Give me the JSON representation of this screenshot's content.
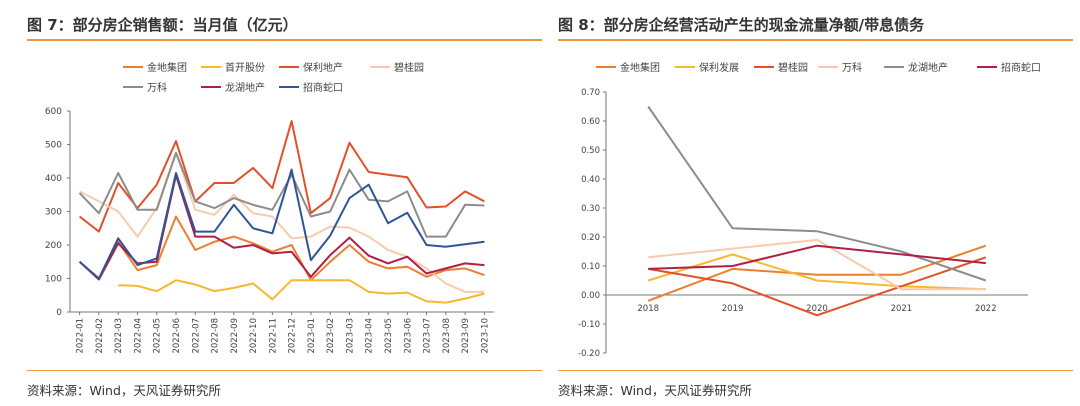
{
  "panels": [
    {
      "title": "图 7：部分房企销售额：当月值（亿元）",
      "source": "资料来源：Wind，天风证券研究所"
    },
    {
      "title": "图 8：部分房企经营活动产生的现金流量净额/带息债务",
      "source": "资料来源：Wind，天风证券研究所"
    }
  ],
  "chart_data": [
    {
      "type": "line",
      "title": "",
      "xlabel": "",
      "ylabel": "",
      "ylim": [
        0,
        600
      ],
      "yticks": [
        "0",
        "100",
        "200",
        "300",
        "400",
        "500",
        "600"
      ],
      "grid": false,
      "legend_position": "top",
      "x": [
        "2022-01",
        "2022-02",
        "2022-03",
        "2022-04",
        "2022-05",
        "2022-06",
        "2022-07",
        "2022-08",
        "2022-09",
        "2022-10",
        "2022-11",
        "2022-12",
        "2023-01",
        "2023-02",
        "2023-03",
        "2023-04",
        "2023-05",
        "2023-06",
        "2023-07",
        "2023-08",
        "2023-09",
        "2023-10"
      ],
      "series": [
        {
          "name": "金地集团",
          "color": "#ED7D31",
          "values": [
            150,
            100,
            210,
            125,
            140,
            285,
            185,
            210,
            225,
            205,
            180,
            200,
            95,
            150,
            200,
            150,
            130,
            135,
            105,
            125,
            130,
            110
          ]
        },
        {
          "name": "首开股份",
          "color": "#F5B82E",
          "values": [
            null,
            null,
            80,
            78,
            62,
            95,
            82,
            62,
            72,
            85,
            38,
            95,
            95,
            95,
            95,
            60,
            55,
            58,
            32,
            28,
            40,
            55
          ]
        },
        {
          "name": "保利地产",
          "color": "#E2502A",
          "values": [
            285,
            240,
            385,
            310,
            380,
            510,
            330,
            385,
            385,
            430,
            370,
            570,
            295,
            340,
            505,
            418,
            410,
            402,
            312,
            315,
            360,
            330
          ]
        },
        {
          "name": "碧桂园",
          "color": "#F8CBAD",
          "values": [
            360,
            330,
            300,
            225,
            310,
            475,
            305,
            290,
            350,
            295,
            285,
            220,
            225,
            255,
            252,
            225,
            185,
            165,
            130,
            85,
            60,
            60
          ]
        },
        {
          "name": "万科",
          "color": "#8C8C8C",
          "values": [
            355,
            295,
            415,
            305,
            305,
            475,
            330,
            310,
            340,
            320,
            305,
            410,
            285,
            300,
            425,
            335,
            330,
            360,
            225,
            225,
            320,
            318
          ]
        },
        {
          "name": "龙湖地产",
          "color": "#B01F45",
          "values": [
            150,
            97,
            205,
            145,
            150,
            408,
            225,
            225,
            192,
            200,
            175,
            180,
            105,
            170,
            222,
            168,
            145,
            165,
            115,
            130,
            145,
            140
          ]
        },
        {
          "name": "招商蛇口",
          "color": "#2F5597",
          "values": [
            150,
            100,
            220,
            140,
            160,
            415,
            240,
            240,
            320,
            250,
            235,
            425,
            155,
            228,
            340,
            380,
            265,
            296,
            200,
            195,
            202,
            210
          ]
        }
      ]
    },
    {
      "type": "line",
      "title": "",
      "xlabel": "",
      "ylabel": "",
      "ylim": [
        -0.2,
        0.7
      ],
      "yticks": [
        "0.70",
        "0.60",
        "0.50",
        "0.40",
        "0.30",
        "0.20",
        "0.10",
        "0.00",
        "-0.10",
        "-0.20"
      ],
      "grid": false,
      "legend_position": "top",
      "x": [
        "2018",
        "2019",
        "2020",
        "2021",
        "2022"
      ],
      "series": [
        {
          "name": "金地集团",
          "color": "#ED7D31",
          "values": [
            -0.02,
            0.09,
            0.07,
            0.07,
            0.17
          ]
        },
        {
          "name": "保利发展",
          "color": "#F5B82E",
          "values": [
            0.05,
            0.14,
            0.05,
            0.03,
            0.02
          ]
        },
        {
          "name": "碧桂园",
          "color": "#E2502A",
          "values": [
            0.09,
            0.04,
            -0.07,
            0.03,
            0.13
          ]
        },
        {
          "name": "万科",
          "color": "#F8CBAD",
          "values": [
            0.13,
            0.16,
            0.19,
            0.02,
            0.02
          ]
        },
        {
          "name": "龙湖地产",
          "color": "#8C8C8C",
          "values": [
            0.65,
            0.23,
            0.22,
            0.15,
            0.05
          ]
        },
        {
          "name": "招商蛇口",
          "color": "#B01F45",
          "values": [
            0.09,
            0.1,
            0.17,
            0.14,
            0.11
          ]
        }
      ]
    }
  ]
}
